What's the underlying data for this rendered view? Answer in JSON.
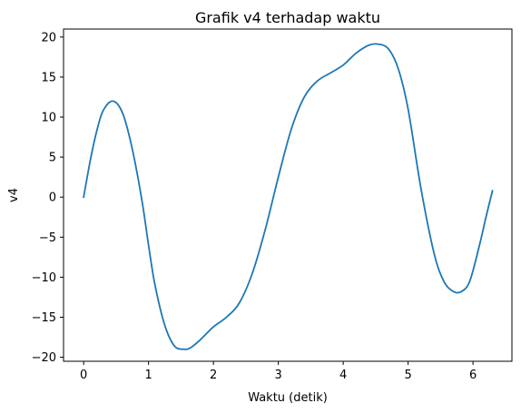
{
  "chart_data": {
    "type": "line",
    "title": "Grafik v4 terhadap waktu",
    "xlabel": "Waktu (detik)",
    "ylabel": "v4",
    "xlim": [
      -0.31,
      6.6
    ],
    "ylim": [
      -20.5,
      21
    ],
    "xticks": [
      0,
      1,
      2,
      3,
      4,
      5,
      6
    ],
    "yticks": [
      -20,
      -15,
      -10,
      -5,
      0,
      5,
      10,
      15,
      20
    ],
    "ytick_labels": [
      "−20",
      "−15",
      "−10",
      "−5",
      "0",
      "5",
      "10",
      "15",
      "20"
    ],
    "grid": false,
    "series": [
      {
        "color": "#1f77b4",
        "x": [
          0,
          0.1,
          0.2,
          0.3,
          0.45,
          0.6,
          0.75,
          0.9,
          1.0,
          1.1,
          1.25,
          1.4,
          1.55,
          1.65,
          1.8,
          2.0,
          2.2,
          2.4,
          2.6,
          2.8,
          3.0,
          3.2,
          3.4,
          3.6,
          3.8,
          4.0,
          4.2,
          4.4,
          4.55,
          4.7,
          4.85,
          5.0,
          5.2,
          5.4,
          5.55,
          5.7,
          5.82,
          5.95,
          6.1,
          6.2,
          6.3
        ],
        "y": [
          0,
          4.5,
          8.2,
          10.8,
          12.0,
          10.5,
          6.0,
          -0.5,
          -6.0,
          -11.0,
          -16.0,
          -18.6,
          -19.0,
          -18.8,
          -17.8,
          -16.2,
          -15.0,
          -13.2,
          -9.5,
          -4.0,
          2.5,
          8.5,
          12.5,
          14.5,
          15.5,
          16.5,
          18.0,
          19.0,
          19.1,
          18.5,
          16.0,
          11.0,
          1.0,
          -7.0,
          -10.5,
          -11.8,
          -11.8,
          -10.5,
          -6.0,
          -2.5,
          0.8
        ]
      }
    ]
  }
}
